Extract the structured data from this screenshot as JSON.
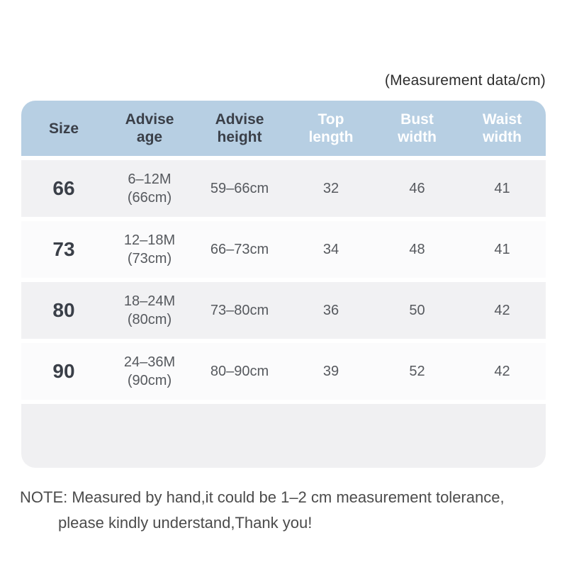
{
  "caption": "(Measurement data/cm)",
  "header": {
    "columns": [
      {
        "name": "size",
        "lines": [
          "Size"
        ]
      },
      {
        "name": "advise_age",
        "lines": [
          "Advise",
          "age"
        ]
      },
      {
        "name": "advise_height",
        "lines": [
          "Advise",
          "height"
        ]
      },
      {
        "name": "top_length",
        "lines": [
          "Top",
          "length"
        ]
      },
      {
        "name": "bust_width",
        "lines": [
          "Bust",
          "width"
        ]
      },
      {
        "name": "waist_width",
        "lines": [
          "Waist",
          "width"
        ]
      }
    ]
  },
  "rows": [
    {
      "size": "66",
      "age_line1": "6–12M",
      "age_line2": "(66cm)",
      "height": "59–66cm",
      "top_length": "32",
      "bust_width": "46",
      "waist_width": "41"
    },
    {
      "size": "73",
      "age_line1": "12–18M",
      "age_line2": "(73cm)",
      "height": "66–73cm",
      "top_length": "34",
      "bust_width": "48",
      "waist_width": "41"
    },
    {
      "size": "80",
      "age_line1": "18–24M",
      "age_line2": "(80cm)",
      "height": "73–80cm",
      "top_length": "36",
      "bust_width": "50",
      "waist_width": "42"
    },
    {
      "size": "90",
      "age_line1": "24–36M",
      "age_line2": "(90cm)",
      "height": "80–90cm",
      "top_length": "39",
      "bust_width": "52",
      "waist_width": "42"
    }
  ],
  "note": {
    "line1": "NOTE: Measured by hand,it could be 1–2 cm measurement tolerance,",
    "line2": "please kindly understand,Thank you!"
  },
  "colors": {
    "header_bg": "#b7cfe3",
    "header_text_dark": "#3a3f48",
    "header_text_light": "#ffffff",
    "row_gray": "#f1f1f3",
    "row_light": "#fbfbfc",
    "footer_bg": "#f0f0f2",
    "cell_text": "#56595e",
    "size_text": "#3a3f48",
    "note_text": "#4b4b4b",
    "caption_text": "#2d2d2d"
  },
  "chart_data": {
    "type": "table",
    "title": "(Measurement data/cm)",
    "columns": [
      "Size",
      "Advise age",
      "Advise height",
      "Top length",
      "Bust width",
      "Waist width"
    ],
    "rows": [
      [
        "66",
        "6–12M (66cm)",
        "59–66cm",
        32,
        46,
        41
      ],
      [
        "73",
        "12–18M (73cm)",
        "66–73cm",
        34,
        48,
        41
      ],
      [
        "80",
        "18–24M (80cm)",
        "73–80cm",
        36,
        50,
        42
      ],
      [
        "90",
        "24–36M (90cm)",
        "80–90cm",
        39,
        52,
        42
      ]
    ],
    "note": "NOTE: Measured by hand,it could be 1–2 cm measurement tolerance, please kindly understand,Thank you!"
  }
}
